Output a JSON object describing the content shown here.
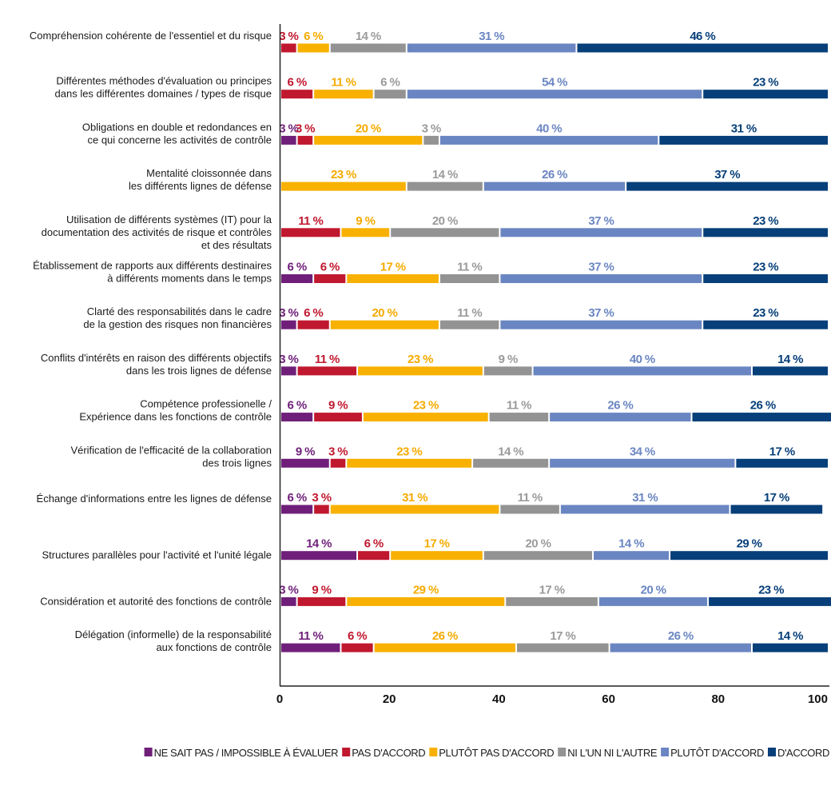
{
  "chart_data": {
    "type": "bar",
    "orientation": "horizontal",
    "stacked": true,
    "categories": [
      [
        "Compréhension cohérente de l'essentiel et du risque"
      ],
      [
        "Différentes méthodes d'évaluation ou principes",
        "dans les différentes domaines / types de risque"
      ],
      [
        "Obligations en double et redondances en",
        "ce qui concerne les activités de contrôle"
      ],
      [
        "Mentalité cloissonnée dans",
        "les différents lignes de défense"
      ],
      [
        "Utilisation de différents systèmes (IT) pour la",
        "documentation des activités de risque et contrôles",
        "et des résultats"
      ],
      [
        "Établissement de rapports aux différents destinaires",
        "à différents moments dans le temps"
      ],
      [
        "Clarté des responsabilités dans le cadre",
        "de la gestion des risques non financières"
      ],
      [
        "Conflits d'intérêts en raison des différents objectifs",
        "dans les trois lignes de défense"
      ],
      [
        "Compétence professionelle /",
        "Expérience dans les fonctions de contrôle"
      ],
      [
        "Vérification de l'efficacité de la collaboration",
        "des trois lignes"
      ],
      [
        "Échange d'informations entre les lignes de défense"
      ],
      [
        "Structures parallèles pour l'activité et l'unité légale"
      ],
      [
        "Considération et autorité des fonctions de contrôle"
      ],
      [
        "Délégation (informelle) de la responsabilité",
        "aux fonctions de contrôle"
      ]
    ],
    "series": [
      {
        "name": "NE SAIT PAS / IMPOSSIBLE À ÉVALUER",
        "color": "#6f1f7a",
        "label_color": "#6f1f7a",
        "values": [
          0,
          0,
          3,
          0,
          0,
          6,
          3,
          3,
          6,
          9,
          6,
          14,
          3,
          11
        ]
      },
      {
        "name": "PAS D'ACCORD",
        "color": "#c0182f",
        "label_color": "#c0182f",
        "values": [
          3,
          6,
          3,
          0,
          11,
          6,
          6,
          11,
          9,
          3,
          3,
          6,
          9,
          6
        ]
      },
      {
        "name": "PLUTÔT PAS D'ACCORD",
        "color": "#f8b100",
        "label_color": "#f5ab00",
        "values": [
          6,
          11,
          20,
          23,
          9,
          17,
          20,
          23,
          23,
          23,
          31,
          17,
          29,
          26
        ]
      },
      {
        "name": "NI L'UN NI L'AUTRE",
        "color": "#939393",
        "label_color": "#9a9a9a",
        "values": [
          14,
          6,
          3,
          14,
          20,
          11,
          11,
          9,
          11,
          14,
          11,
          20,
          17,
          17
        ]
      },
      {
        "name": "PLUTÔT D'ACCORD",
        "color": "#6a86c2",
        "label_color": "#6a86c2",
        "values": [
          31,
          54,
          40,
          26,
          37,
          37,
          37,
          40,
          26,
          34,
          31,
          14,
          20,
          26
        ]
      },
      {
        "name": "D'ACCORD",
        "color": "#063f79",
        "label_color": "#063f79",
        "values": [
          46,
          23,
          31,
          37,
          23,
          23,
          23,
          14,
          26,
          17,
          17,
          29,
          23,
          14
        ]
      }
    ],
    "value_suffix": " %",
    "xlim": [
      0,
      100
    ],
    "xticks": [
      "0",
      "20",
      "40",
      "60",
      "80",
      "100"
    ],
    "grid": false,
    "legend_position": "bottom",
    "title": "",
    "xlabel": "",
    "ylabel": ""
  }
}
